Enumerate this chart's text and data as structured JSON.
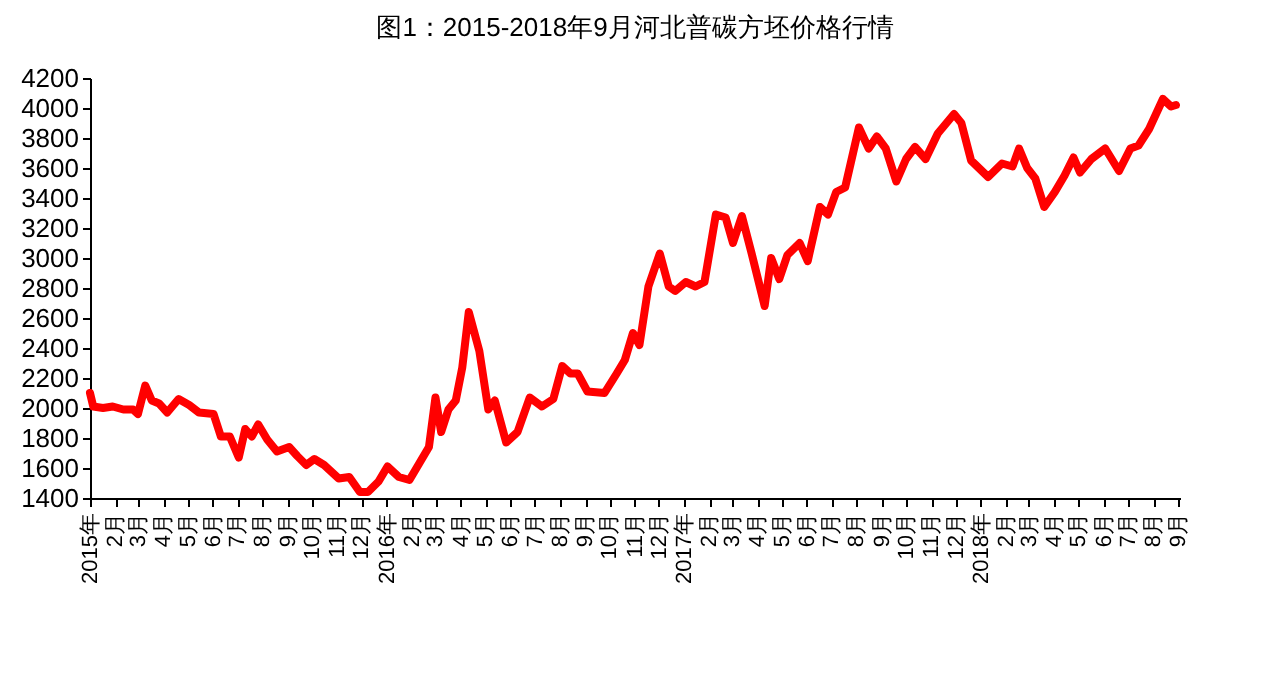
{
  "chart_data": {
    "type": "line",
    "title": "图1：2015-2018年9月河北普碳方坯价格行情",
    "x": [
      "2015-01-01",
      "2015-01-05",
      "2015-01-17",
      "2015-01-29",
      "2015-02-11",
      "2015-02-23",
      "2015-03-01",
      "2015-03-10",
      "2015-03-18",
      "2015-03-27",
      "2015-04-06",
      "2015-04-20",
      "2015-05-03",
      "2015-05-15",
      "2015-06-02",
      "2015-06-11",
      "2015-06-22",
      "2015-07-03",
      "2015-07-11",
      "2015-07-19",
      "2015-07-27",
      "2015-08-07",
      "2015-08-19",
      "2015-09-03",
      "2015-09-13",
      "2015-09-24",
      "2015-10-04",
      "2015-10-16",
      "2015-11-03",
      "2015-11-16",
      "2015-11-29",
      "2015-12-09",
      "2015-12-22",
      "2016-01-02",
      "2016-01-16",
      "2016-01-29",
      "2016-02-10",
      "2016-02-22",
      "2016-03-01",
      "2016-03-08",
      "2016-03-17",
      "2016-03-26",
      "2016-04-03",
      "2016-04-11",
      "2016-04-24",
      "2016-05-05",
      "2016-05-13",
      "2016-05-27",
      "2016-06-10",
      "2016-06-25",
      "2016-07-10",
      "2016-07-24",
      "2016-08-04",
      "2016-08-14",
      "2016-08-23",
      "2016-09-04",
      "2016-09-25",
      "2016-10-10",
      "2016-10-20",
      "2016-10-30",
      "2016-11-07",
      "2016-11-18",
      "2016-12-02",
      "2016-12-13",
      "2016-12-21",
      "2017-01-03",
      "2017-01-15",
      "2017-01-26",
      "2017-02-09",
      "2017-02-21",
      "2017-03-02",
      "2017-03-13",
      "2017-03-25",
      "2017-04-10",
      "2017-04-18",
      "2017-04-28",
      "2017-05-08",
      "2017-05-23",
      "2017-06-02",
      "2017-06-17",
      "2017-06-27",
      "2017-07-07",
      "2017-07-18",
      "2017-08-04",
      "2017-08-16",
      "2017-08-26",
      "2017-09-06",
      "2017-09-19",
      "2017-10-01",
      "2017-10-12",
      "2017-10-25",
      "2017-11-09",
      "2017-11-29",
      "2017-12-08",
      "2017-12-20",
      "2018-01-10",
      "2018-01-27",
      "2018-02-09",
      "2018-02-17",
      "2018-02-27",
      "2018-03-09",
      "2018-03-20",
      "2018-04-02",
      "2018-04-14",
      "2018-04-25",
      "2018-05-03",
      "2018-05-17",
      "2018-06-03",
      "2018-06-20",
      "2018-07-04",
      "2018-07-14",
      "2018-07-27",
      "2018-08-13",
      "2018-08-23",
      "2018-08-29"
    ],
    "values": [
      2100,
      2010,
      2000,
      2010,
      1990,
      1990,
      1960,
      2150,
      2050,
      2030,
      1970,
      2060,
      2020,
      1970,
      1960,
      1810,
      1810,
      1670,
      1860,
      1810,
      1890,
      1790,
      1710,
      1740,
      1680,
      1620,
      1660,
      1620,
      1530,
      1540,
      1440,
      1440,
      1510,
      1610,
      1540,
      1520,
      1630,
      1740,
      2070,
      1840,
      1990,
      2050,
      2270,
      2640,
      2380,
      1990,
      2050,
      1770,
      1840,
      2070,
      2010,
      2060,
      2280,
      2230,
      2230,
      2110,
      2100,
      2230,
      2320,
      2500,
      2420,
      2810,
      3030,
      2810,
      2780,
      2840,
      2810,
      2840,
      3290,
      3270,
      3100,
      3280,
      3030,
      2680,
      3000,
      2860,
      3020,
      3100,
      2980,
      3340,
      3290,
      3440,
      3470,
      3870,
      3730,
      3810,
      3730,
      3510,
      3660,
      3740,
      3660,
      3830,
      3960,
      3900,
      3650,
      3540,
      3630,
      3610,
      3730,
      3600,
      3530,
      3340,
      3440,
      3550,
      3670,
      3570,
      3660,
      3730,
      3580,
      3730,
      3750,
      3860,
      4060,
      4010,
      4020
    ],
    "color": "#ff0000",
    "line_style": "solid",
    "marker": "none",
    "grid": false,
    "xlim": [
      "2015-01-01",
      "2018-09-03"
    ],
    "xticks": [
      {
        "value": "2015-01",
        "label": "2015年"
      },
      {
        "value": "2015-02",
        "label": "2月"
      },
      {
        "value": "2015-03",
        "label": "3月"
      },
      {
        "value": "2015-04",
        "label": "4月"
      },
      {
        "value": "2015-05",
        "label": "5月"
      },
      {
        "value": "2015-06",
        "label": "6月"
      },
      {
        "value": "2015-07",
        "label": "7月"
      },
      {
        "value": "2015-08",
        "label": "8月"
      },
      {
        "value": "2015-09",
        "label": "9月"
      },
      {
        "value": "2015-10",
        "label": "10月"
      },
      {
        "value": "2015-11",
        "label": "11月"
      },
      {
        "value": "2015-12",
        "label": "12月"
      },
      {
        "value": "2016-01",
        "label": "2016年"
      },
      {
        "value": "2016-02",
        "label": "2月"
      },
      {
        "value": "2016-03",
        "label": "3月"
      },
      {
        "value": "2016-04",
        "label": "4月"
      },
      {
        "value": "2016-05",
        "label": "5月"
      },
      {
        "value": "2016-06",
        "label": "6月"
      },
      {
        "value": "2016-07",
        "label": "7月"
      },
      {
        "value": "2016-08",
        "label": "8月"
      },
      {
        "value": "2016-09",
        "label": "9月"
      },
      {
        "value": "2016-10",
        "label": "10月"
      },
      {
        "value": "2016-11",
        "label": "11月"
      },
      {
        "value": "2016-12",
        "label": "12月"
      },
      {
        "value": "2017-01",
        "label": "2017年"
      },
      {
        "value": "2017-02",
        "label": "2月"
      },
      {
        "value": "2017-03",
        "label": "3月"
      },
      {
        "value": "2017-04",
        "label": "4月"
      },
      {
        "value": "2017-05",
        "label": "5月"
      },
      {
        "value": "2017-06",
        "label": "6月"
      },
      {
        "value": "2017-07",
        "label": "7月"
      },
      {
        "value": "2017-08",
        "label": "8月"
      },
      {
        "value": "2017-09",
        "label": "9月"
      },
      {
        "value": "2017-10",
        "label": "10月"
      },
      {
        "value": "2017-11",
        "label": "11月"
      },
      {
        "value": "2017-12",
        "label": "12月"
      },
      {
        "value": "2018-01",
        "label": "2018年"
      },
      {
        "value": "2018-02",
        "label": "2月"
      },
      {
        "value": "2018-03",
        "label": "3月"
      },
      {
        "value": "2018-04",
        "label": "4月"
      },
      {
        "value": "2018-05",
        "label": "5月"
      },
      {
        "value": "2018-06",
        "label": "6月"
      },
      {
        "value": "2018-07",
        "label": "7月"
      },
      {
        "value": "2018-08",
        "label": "8月"
      },
      {
        "value": "2018-09",
        "label": "9月"
      }
    ],
    "ylim": [
      1400,
      4200
    ],
    "yticks": [
      1400,
      1600,
      1800,
      2000,
      2200,
      2400,
      2600,
      2800,
      3000,
      3200,
      3400,
      3600,
      3800,
      4000,
      4200
    ]
  }
}
